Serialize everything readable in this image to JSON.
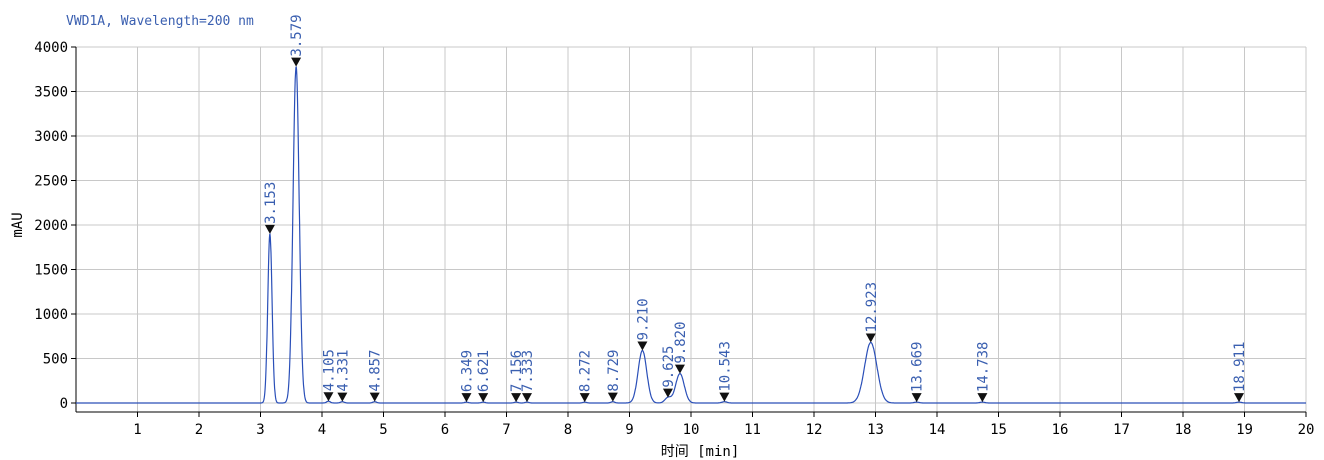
{
  "chart_data": {
    "type": "line",
    "title": "VWD1A, Wavelength=200 nm",
    "xlabel": "时间 [min]",
    "ylabel": "mAU",
    "xlim": [
      0,
      20
    ],
    "ylim": [
      -50,
      4050
    ],
    "x_ticks": [
      1,
      2,
      3,
      4,
      5,
      6,
      7,
      8,
      9,
      10,
      11,
      12,
      13,
      14,
      15,
      16,
      17,
      18,
      19,
      20
    ],
    "y_ticks": [
      0,
      500,
      1000,
      1500,
      2000,
      2500,
      3000,
      3500,
      4000
    ],
    "grid": true,
    "colors": {
      "trace": "#2a4fb8",
      "labels": "#3a5fb0",
      "grid": "#c8c8c8",
      "markers": "#111111"
    },
    "peaks": [
      {
        "time": 3.153,
        "label": "3.153",
        "height": 1900,
        "width": 0.035
      },
      {
        "time": 3.579,
        "label": "3.579",
        "height": 3780,
        "width": 0.05
      },
      {
        "time": 4.105,
        "label": "4.105",
        "height": 20,
        "width": 0.03
      },
      {
        "time": 4.331,
        "label": "4.331",
        "height": 15,
        "width": 0.03
      },
      {
        "time": 4.857,
        "label": "4.857",
        "height": 15,
        "width": 0.03
      },
      {
        "time": 6.349,
        "label": "6.349",
        "height": 10,
        "width": 0.03
      },
      {
        "time": 6.621,
        "label": "6.621",
        "height": 10,
        "width": 0.03
      },
      {
        "time": 7.156,
        "label": "7.156",
        "height": 10,
        "width": 0.03
      },
      {
        "time": 7.333,
        "label": "7.333",
        "height": 10,
        "width": 0.03
      },
      {
        "time": 8.272,
        "label": "8.272",
        "height": 10,
        "width": 0.03
      },
      {
        "time": 8.729,
        "label": "8.729",
        "height": 15,
        "width": 0.03
      },
      {
        "time": 9.21,
        "label": "9.210",
        "height": 590,
        "width": 0.07
      },
      {
        "time": 9.625,
        "label": "9.625",
        "height": 60,
        "width": 0.05
      },
      {
        "time": 9.82,
        "label": "9.820",
        "height": 330,
        "width": 0.07
      },
      {
        "time": 10.543,
        "label": "10.543",
        "height": 15,
        "width": 0.04
      },
      {
        "time": 12.923,
        "label": "12.923",
        "height": 680,
        "width": 0.1
      },
      {
        "time": 13.669,
        "label": "13.669",
        "height": 10,
        "width": 0.04
      },
      {
        "time": 14.738,
        "label": "14.738",
        "height": 10,
        "width": 0.04
      },
      {
        "time": 18.911,
        "label": "18.911",
        "height": 10,
        "width": 0.04
      }
    ]
  }
}
